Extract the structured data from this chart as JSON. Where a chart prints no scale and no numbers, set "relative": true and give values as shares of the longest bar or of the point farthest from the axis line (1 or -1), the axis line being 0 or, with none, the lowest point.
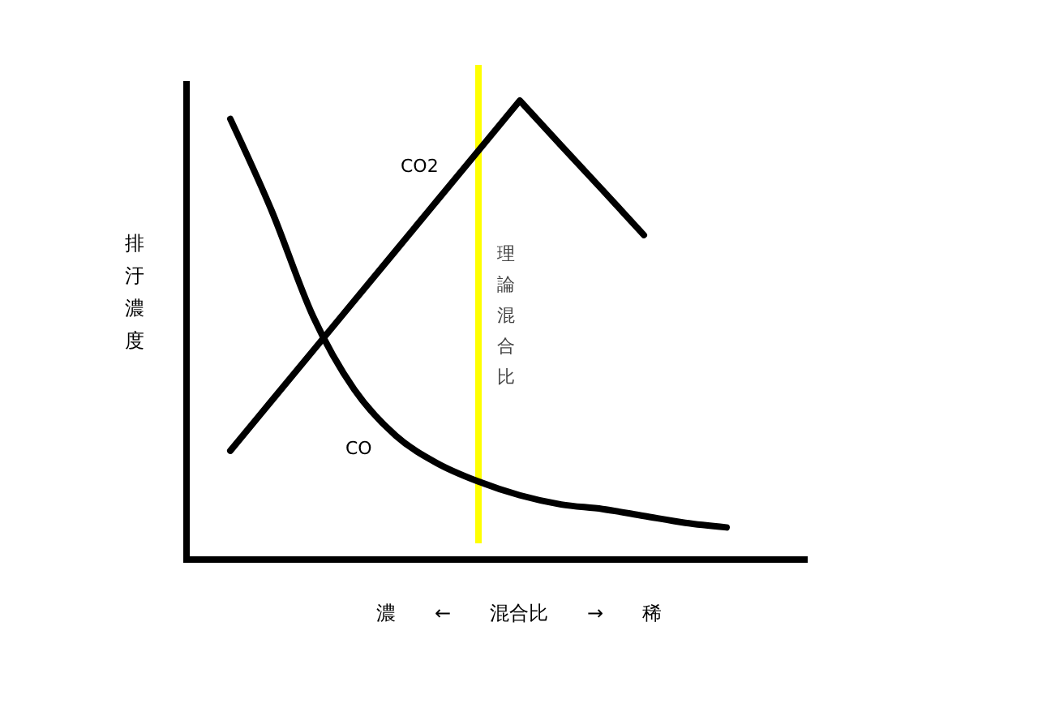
{
  "chart_data": {
    "type": "line",
    "relative": true,
    "xlabel": "濃　　←　　混合比　　→　　稀",
    "ylabel": "排汙濃度",
    "categories": [
      null,
      null,
      null,
      null,
      null,
      null,
      null,
      null,
      null,
      null,
      null,
      null,
      null
    ],
    "series": [
      {
        "name": "CO2",
        "color": "#000000",
        "values": [
          0.237,
          0.346,
          0.455,
          0.564,
          0.673,
          0.782,
          0.891,
          1.0,
          0.902,
          0.805,
          0.707,
          null,
          null
        ]
      },
      {
        "name": "CO",
        "color": "#000000",
        "values": [
          0.96,
          0.76,
          0.53,
          0.37,
          0.27,
          0.21,
          0.17,
          0.14,
          0.12,
          0.11,
          0.095,
          0.08,
          0.07
        ]
      }
    ],
    "annotations": [
      "理論混合比"
    ],
    "line_style": "solid"
  }
}
